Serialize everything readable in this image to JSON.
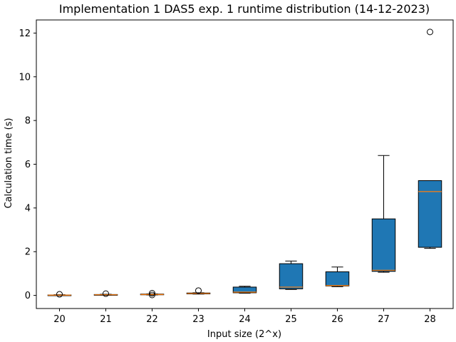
{
  "chart_data": {
    "type": "box",
    "title": "Implementation 1 DAS5 exp. 1 runtime distribution (14-12-2023)",
    "xlabel": "Input size (2^x)",
    "ylabel": "Calculation time (s)",
    "ylim": [
      -0.6,
      12.6
    ],
    "yticks": [
      0,
      2,
      4,
      6,
      8,
      10,
      12
    ],
    "grid": false,
    "legend": "none",
    "colors": {
      "box_fill": "#1f77b4",
      "median": "#ff7f0e",
      "edge": "#000000"
    },
    "categories": [
      "20",
      "21",
      "22",
      "23",
      "24",
      "25",
      "26",
      "27",
      "28"
    ],
    "boxes": [
      {
        "label": "20",
        "whislo": 0.0,
        "q1": 0.0,
        "med": 0.01,
        "q3": 0.02,
        "whishi": 0.03,
        "fliers": [
          0.05
        ]
      },
      {
        "label": "21",
        "whislo": 0.01,
        "q1": 0.02,
        "med": 0.03,
        "q3": 0.04,
        "whishi": 0.05,
        "fliers": [
          0.08
        ]
      },
      {
        "label": "22",
        "whislo": 0.02,
        "q1": 0.03,
        "med": 0.04,
        "q3": 0.06,
        "whishi": 0.07,
        "fliers": [
          0.1,
          0.02
        ]
      },
      {
        "label": "23",
        "whislo": 0.06,
        "q1": 0.07,
        "med": 0.09,
        "q3": 0.11,
        "whishi": 0.12,
        "fliers": [
          0.22
        ]
      },
      {
        "label": "24",
        "whislo": 0.1,
        "q1": 0.12,
        "med": 0.15,
        "q3": 0.38,
        "whishi": 0.42,
        "fliers": []
      },
      {
        "label": "25",
        "whislo": 0.27,
        "q1": 0.3,
        "med": 0.38,
        "q3": 1.45,
        "whishi": 1.57,
        "fliers": []
      },
      {
        "label": "26",
        "whislo": 0.4,
        "q1": 0.43,
        "med": 0.45,
        "q3": 1.08,
        "whishi": 1.3,
        "fliers": []
      },
      {
        "label": "27",
        "whislo": 1.06,
        "q1": 1.1,
        "med": 1.15,
        "q3": 3.5,
        "whishi": 6.4,
        "fliers": []
      },
      {
        "label": "28",
        "whislo": 2.15,
        "q1": 2.2,
        "med": 4.75,
        "q3": 5.25,
        "whishi": 5.25,
        "fliers": [
          12.05
        ]
      }
    ]
  }
}
